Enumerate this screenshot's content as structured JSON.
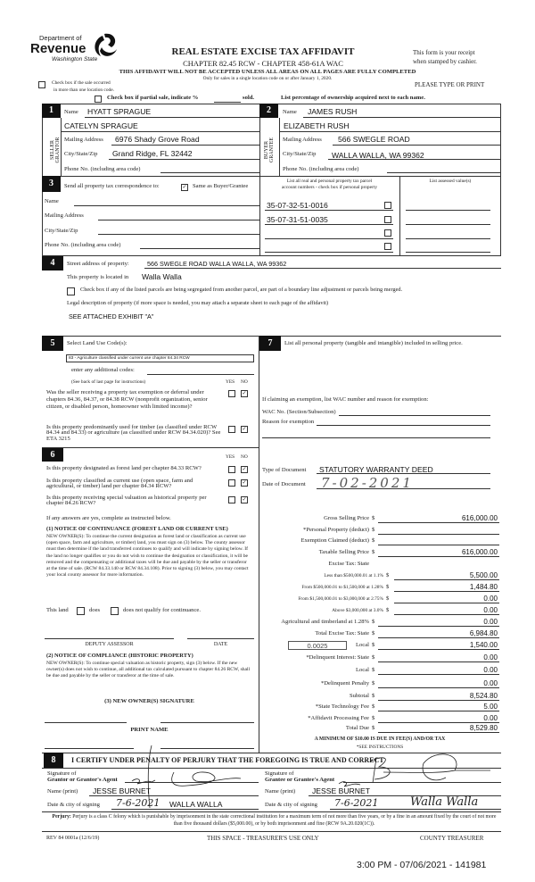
{
  "header": {
    "logo": {
      "line1": "Department of",
      "line2": "Revenue",
      "line3": "Washington State"
    },
    "title": "REAL ESTATE EXCISE TAX AFFIDAVIT",
    "subtitle": "CHAPTER 82.45 RCW - CHAPTER 458-61A WAC",
    "warning": "THIS AFFIDAVIT WILL NOT BE ACCEPTED UNLESS ALL AREAS ON ALL PAGES ARE FULLY COMPLETED",
    "note": "Only for sales in a single location code on or after January 1, 2020.",
    "receipt1": "This form is your receipt",
    "receipt2": "when stamped by cashier.",
    "please": "PLEASE TYPE OR PRINT",
    "multi_location1": "Check box if the sale occurred",
    "multi_location2": "in more than one location code.",
    "multi_location_checked": false,
    "partial_sale": "Check box if partial sale, indicate %",
    "partial_sold": "sold.",
    "partial_checked": false,
    "ownership_note": "List percentage of ownership acquired next to each name."
  },
  "seller": {
    "num": "1",
    "side_label": "SELLER GRANTOR",
    "name_label": "Name",
    "name1": "HYATT SPRAGUE",
    "name2": "CATELYN SPRAGUE",
    "mailing_label": "Mailing Address",
    "mailing": "6976 Shady Grove Road",
    "city_label": "City/State/Zip",
    "city": "Grand Ridge, FL 32442",
    "phone_label": "Phone No. (including area code)"
  },
  "buyer": {
    "num": "2",
    "side_label": "BUYER GRANTEE",
    "name_label": "Name",
    "name1": "JAMES RUSH",
    "name2": "ELIZABETH RUSH",
    "mailing_label": "Mailing Address",
    "mailing": "566 SWEGLE ROAD",
    "city_label": "City/State/Zip",
    "city": "WALLA WALLA, WA 99362",
    "phone_label": "Phone No. (including area code)"
  },
  "section3": {
    "num": "3",
    "send_label": "Send all property tax correspondence to:",
    "same_label": "Same as Buyer/Grantee",
    "same_checked": true,
    "name_label": "Name",
    "mailing_label": "Mailing Address",
    "city_label": "City/State/Zip",
    "phone_label": "Phone No. (including area code)",
    "parcels_header1": "List all real and personal property tax parcel",
    "parcels_header2": "account numbers - check box if personal property",
    "assessed_header": "List assessed value(s)",
    "parcels": [
      "35-07-32-51-0016",
      "35-07-31-51-0035",
      "",
      ""
    ]
  },
  "section4": {
    "num": "4",
    "street_label": "Street address of property:",
    "street": "566 SWEGLE ROAD WALLA WALLA, WA 99362",
    "located_label": "This property is located in",
    "located": "Walla Walla",
    "segregated_label": "Check box if any of the listed parcels are being segregated from another parcel, are part of a boundary line adjustment or parcels being merged.",
    "segregated_checked": false,
    "legal_label": "Legal description of property (if more space is needed, you may attach a separate sheet to each page of the affidavit)",
    "legal": "SEE ATTACHED EXHIBIT \"A\""
  },
  "section5": {
    "num": "5",
    "label": "Select Land Use Code(s):",
    "code": "83 - Agriculture classified under current use chapter 84.34 RCW",
    "additional_label": "enter any additional codes:",
    "see_back": "(See back of last page for instructions)",
    "yes": "YES",
    "no": "NO",
    "q1": "Was the seller receiving a property tax exemption or deferral under chapters 84.36, 84.37, or 84.38 RCW (nonprofit organization, senior citizen, or disabled person, homeowner with limited income)?",
    "q1_answer": "NO",
    "q2": "Is this property predominantly used for timber (as classified under RCW 84.34 and 84.33) or agriculture (as classified under RCW 84.34.020)? See ETA 3215",
    "q2_answer": "NO"
  },
  "section6": {
    "num": "6",
    "yes": "YES",
    "no": "NO",
    "q1": "Is this property designated as forest land per chapter 84.33 RCW?",
    "q2": "Is this property classified as current use (open space, farm and agricultural, or timber) land per chapter 84.34 RCW?",
    "q3": "Is this property receiving special valuation as historical property per chapter 84.26 RCW?",
    "answers": [
      "NO",
      "NO",
      "NO"
    ],
    "if_yes": "If any answers are yes, complete as instructed below.",
    "notice1_title": "(1) NOTICE OF CONTINUANCE (FOREST LAND OR CURRENT USE)",
    "notice1_text": "NEW OWNER(S): To continue the current designation as forest land or classification as current use (open space, farm and agriculture, or timber) land, you must sign on (3) below. The county assessor must then determine if the land transferred continues to qualify and will indicate by signing below. If the land no longer qualifies or you do not wish to continue the designation or classification, it will be removed and the compensating or additional taxes will be due and payable by the seller or transferor at the time of sale. (RCW 84.33.140 or RCW 84.34.108). Prior to signing (3) below, you may contact your local county assessor for more information.",
    "this_land": "This land",
    "does": "does",
    "does_not": "does not qualify for continuance.",
    "deputy_assessor": "DEPUTY ASSESSOR",
    "date": "DATE",
    "notice2_title": "(2) NOTICE OF COMPLIANCE (HISTORIC PROPERTY)",
    "notice2_text": "NEW OWNER(S): To continue special valuation as historic property, sign (3) below. If the new owner(s) does not wish to continue, all additional tax calculated pursuant to chapter 84.26 RCW, shall be due and payable by the seller or transferor at the time of sale.",
    "new_owner_signature": "(3) NEW OWNER(S) SIGNATURE",
    "print_name": "PRINT NAME"
  },
  "section7": {
    "num": "7",
    "label": "List all personal property (tangible and intangible) included in selling price.",
    "exemption_label": "If claiming an exemption, list WAC number and reason for exemption:",
    "wac_label": "WAC No. (Section/Subsection)",
    "reason_label": "Reason for exemption",
    "doc_type_label": "Type of Document",
    "doc_type": "STATUTORY WARRANTY DEED",
    "doc_date_label": "Date of Document",
    "doc_date": "7-02-2021"
  },
  "tax": {
    "rows": [
      {
        "label": "Gross Selling Price",
        "value": "616,000.00"
      },
      {
        "label": "*Personal Property (deduct)",
        "value": ""
      },
      {
        "label": "Exemption Claimed (deduct)",
        "value": ""
      },
      {
        "label": "Taxable Selling Price",
        "value": "616,000.00"
      },
      {
        "label": "Excise Tax: State",
        "value": ""
      },
      {
        "label": "Less than $500,000.01 at 1.1%",
        "value": "5,500.00"
      },
      {
        "label": "From $500,000.01 to $1,500,000 at 1.28%",
        "value": "1,484.80"
      },
      {
        "label": "From $1,500,000.01 to $3,000,000 at 2.75%",
        "value": "0.00"
      },
      {
        "label": "Above $3,000,000 at 3.0%",
        "value": "0.00"
      },
      {
        "label": "Agricultural and timberland at 1.28%",
        "value": "0.00"
      },
      {
        "label": "Total Excise Tax: State",
        "value": "6,984.80"
      },
      {
        "label": "Local",
        "value": "1,540.00"
      },
      {
        "label": "*Delinquent Interest: State",
        "value": "0.00"
      },
      {
        "label": "Local",
        "value": "0.00"
      },
      {
        "label": "*Delinquent Penalty",
        "value": "0.00"
      },
      {
        "label": "Subtotal",
        "value": "8,524.80"
      },
      {
        "label": "*State Technology Fee",
        "value": "5.00"
      },
      {
        "label": "*Affidavit Processing Fee",
        "value": "0.00"
      },
      {
        "label": "Total Due",
        "value": "8,529.80"
      }
    ],
    "currency": "$",
    "local_rate": "0.0025",
    "minimum": "A MINIMUM OF $10.00 IS DUE IN FEE(S) AND/OR TAX",
    "see_instructions": "*SEE INSTRUCTIONS"
  },
  "section8": {
    "num": "8",
    "certify": "I CERTIFY UNDER PENALTY OF PERJURY THAT THE FOREGOING IS TRUE AND CORRECT",
    "grantor_sig_label1": "Signature of",
    "grantor_sig_label2": "Grantor or Grantor's Agent",
    "grantee_sig_label1": "Signature of",
    "grantee_sig_label2": "Grantee or Grantee's Agent",
    "name_label": "Name (print)",
    "grantor_name": "JESSE BURNET",
    "grantee_name": "JESSE BURNET",
    "date_label": "Date & city of signing",
    "grantor_date": "7-6-2021",
    "grantor_city": "WALLA WALLA",
    "grantee_date": "7-6-2021",
    "grantee_city": "Walla Walla"
  },
  "footer": {
    "perjury_label": "Perjury:",
    "perjury_text": "Perjury is a class C felony which is punishable by imprisonment in the state correctional institution for a maximum term of not more than five years, or by a fine in an amount fixed by the court of not more than five thousand dollars ($5,000.00), or by both imprisonment and fine (RCW 9A.20.020(1C)).",
    "form_id": "REV 84 0001a (12/6/19)",
    "treasurer_space": "THIS SPACE - TREASURER'S USE ONLY",
    "county_treasurer": "COUNTY TREASURER",
    "stamp": "3:00 PM - 07/06/2021 - 141981"
  }
}
